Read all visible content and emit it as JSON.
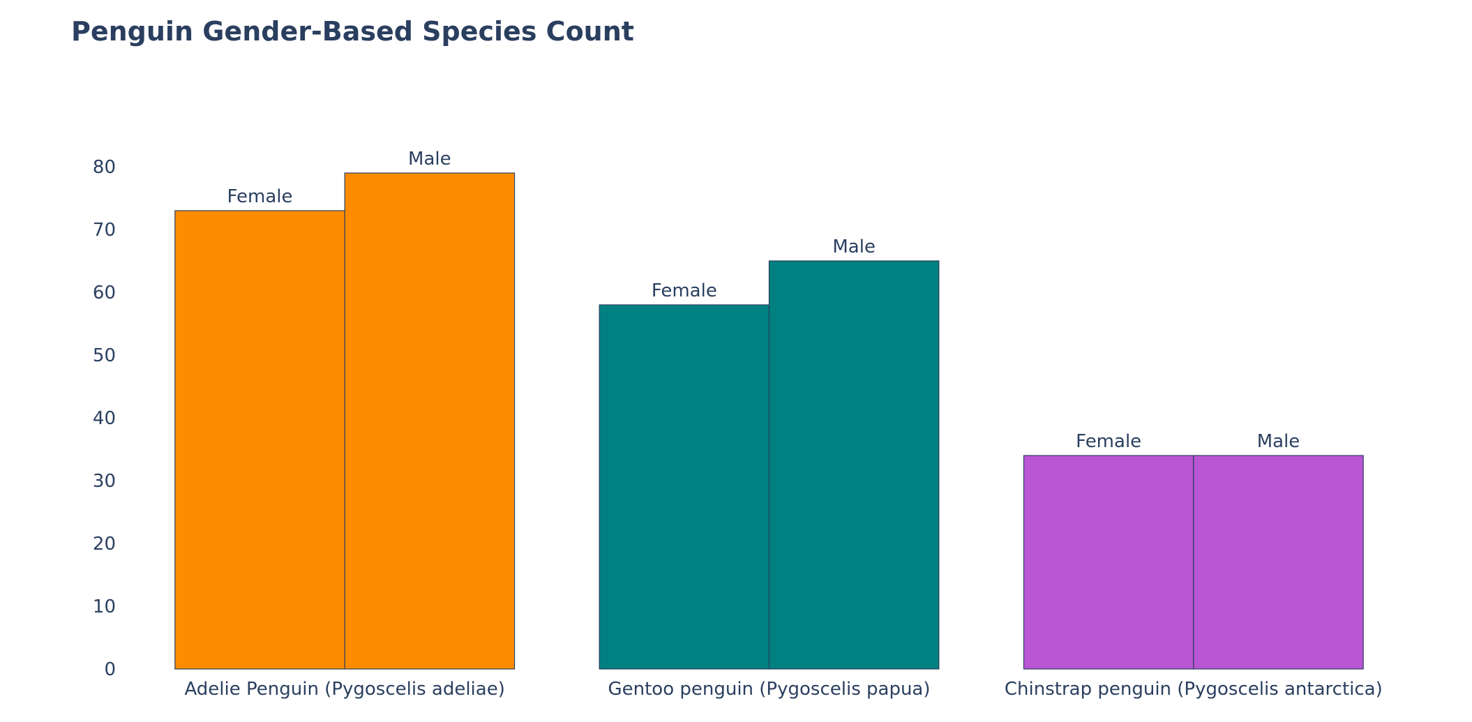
{
  "chart_data": {
    "type": "bar",
    "title": "Penguin Gender-Based Species Count",
    "xlabel": "",
    "ylabel": "",
    "ylim": [
      0,
      83
    ],
    "yticks": [
      0,
      10,
      20,
      30,
      40,
      50,
      60,
      70,
      80
    ],
    "grid": false,
    "legend": "none",
    "categories": [
      "Adelie Penguin (Pygoscelis adeliae)",
      "Gentoo penguin (Pygoscelis papua)",
      "Chinstrap penguin (Pygoscelis antarctica)"
    ],
    "groups": [
      "Female",
      "Male"
    ],
    "values": [
      [
        73,
        79
      ],
      [
        58,
        65
      ],
      [
        34,
        34
      ]
    ],
    "colors": [
      "#ff8c00",
      "#008080",
      "#ba55d3"
    ]
  }
}
